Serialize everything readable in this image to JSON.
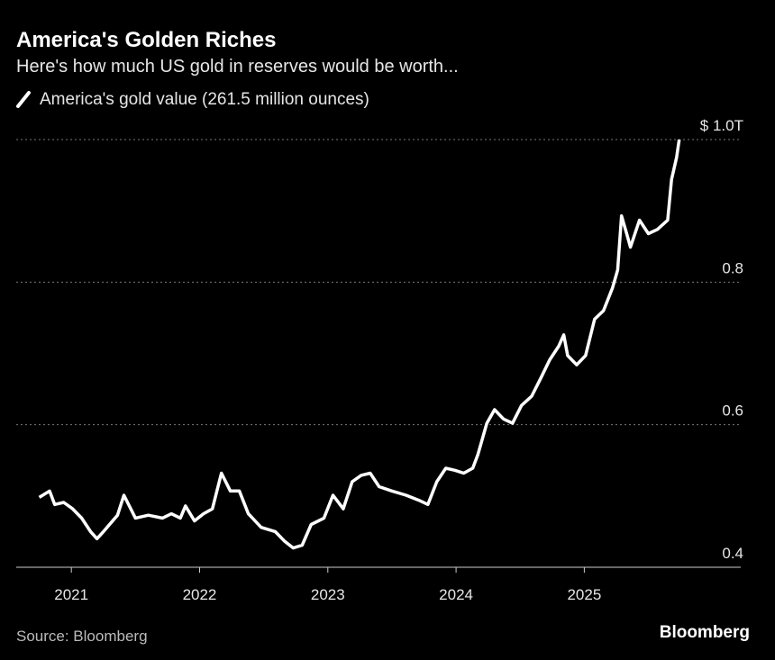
{
  "chart_data": {
    "type": "line",
    "title": "America's Golden Riches",
    "subtitle": "Here's how much US gold in reserves would be worth...",
    "source": "Source: Bloomberg",
    "logo": "Bloomberg",
    "x": [
      2020.75,
      2020.83,
      2020.87,
      2020.94,
      2021.01,
      2021.08,
      2021.15,
      2021.2,
      2021.25,
      2021.36,
      2021.41,
      2021.5,
      2021.6,
      2021.71,
      2021.78,
      2021.85,
      2021.89,
      2021.96,
      2022.03,
      2022.1,
      2022.17,
      2022.24,
      2022.31,
      2022.38,
      2022.48,
      2022.59,
      2022.66,
      2022.73,
      2022.8,
      2022.87,
      2022.97,
      2023.04,
      2023.12,
      2023.19,
      2023.26,
      2023.33,
      2023.4,
      2023.5,
      2023.61,
      2023.71,
      2023.78,
      2023.85,
      2023.92,
      2023.99,
      2024.06,
      2024.13,
      2024.17,
      2024.24,
      2024.3,
      2024.37,
      2024.44,
      2024.51,
      2024.59,
      2024.66,
      2024.73,
      2024.8,
      2024.84,
      2024.87,
      2024.94,
      2025.01,
      2025.08,
      2025.15,
      2025.22,
      2025.26,
      2025.29,
      2025.33,
      2025.36,
      2025.43,
      2025.5,
      2025.57,
      2025.65,
      2025.68,
      2025.72,
      2025.74
    ],
    "series": [
      {
        "name": "America's gold value (261.5 million ounces)",
        "color": "#ffffff",
        "values": [
          0.498,
          0.507,
          0.488,
          0.491,
          0.482,
          0.469,
          0.45,
          0.44,
          0.45,
          0.473,
          0.501,
          0.469,
          0.473,
          0.469,
          0.475,
          0.469,
          0.486,
          0.465,
          0.475,
          0.482,
          0.532,
          0.507,
          0.507,
          0.475,
          0.456,
          0.45,
          0.437,
          0.427,
          0.431,
          0.46,
          0.469,
          0.501,
          0.482,
          0.52,
          0.529,
          0.532,
          0.513,
          0.507,
          0.501,
          0.494,
          0.488,
          0.52,
          0.539,
          0.536,
          0.532,
          0.539,
          0.558,
          0.602,
          0.621,
          0.608,
          0.602,
          0.627,
          0.64,
          0.665,
          0.691,
          0.71,
          0.726,
          0.697,
          0.684,
          0.697,
          0.748,
          0.76,
          0.792,
          0.817,
          0.893,
          0.868,
          0.849,
          0.887,
          0.868,
          0.874,
          0.887,
          0.944,
          0.975,
          1.0
        ]
      }
    ],
    "xlim": [
      2020.57,
      2026.22
    ],
    "xticks": [
      2021,
      2022,
      2023,
      2024,
      2025
    ],
    "ylim": [
      0.4,
      1.0
    ],
    "yticks": [
      0.4,
      0.6,
      0.8,
      {
        "value": 1.0,
        "label": "$ 1.0T"
      }
    ],
    "grid": true
  }
}
